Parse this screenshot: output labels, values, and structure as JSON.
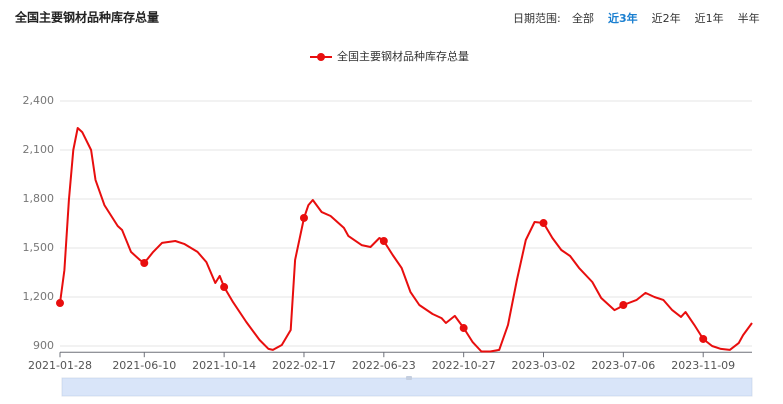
{
  "header": {
    "title": "全国主要钢材品种库存总量",
    "date_range_label": "日期范围:",
    "date_options": [
      "全部",
      "近3年",
      "近2年",
      "近1年",
      "半年"
    ],
    "active_option": 1
  },
  "chart_data": {
    "type": "line",
    "x": [
      "2021-01-28",
      "2021-02-04",
      "2021-02-11",
      "2021-02-18",
      "2021-02-25",
      "2021-03-04",
      "2021-03-18",
      "2021-03-25",
      "2021-04-08",
      "2021-04-29",
      "2021-05-06",
      "2021-05-20",
      "2021-06-03",
      "2021-06-10",
      "2021-06-24",
      "2021-07-08",
      "2021-07-29",
      "2021-08-12",
      "2021-09-02",
      "2021-09-16",
      "2021-09-30",
      "2021-10-07",
      "2021-10-14",
      "2021-10-28",
      "2021-11-18",
      "2021-12-09",
      "2021-12-23",
      "2021-12-30",
      "2022-01-13",
      "2022-01-27",
      "2022-02-03",
      "2022-02-17",
      "2022-02-24",
      "2022-03-03",
      "2022-03-17",
      "2022-03-31",
      "2022-04-21",
      "2022-04-28",
      "2022-05-19",
      "2022-06-02",
      "2022-06-16",
      "2022-06-23",
      "2022-07-07",
      "2022-07-21",
      "2022-08-04",
      "2022-08-18",
      "2022-09-08",
      "2022-09-22",
      "2022-09-29",
      "2022-10-13",
      "2022-10-27",
      "2022-11-10",
      "2022-11-24",
      "2022-12-08",
      "2022-12-22",
      "2023-01-05",
      "2023-01-19",
      "2023-02-02",
      "2023-02-16",
      "2023-03-02",
      "2023-03-16",
      "2023-03-30",
      "2023-04-13",
      "2023-04-27",
      "2023-05-18",
      "2023-06-01",
      "2023-06-22",
      "2023-06-29",
      "2023-07-06",
      "2023-07-27",
      "2023-08-10",
      "2023-08-24",
      "2023-09-07",
      "2023-09-21",
      "2023-10-05",
      "2023-10-12",
      "2023-10-26",
      "2023-11-09",
      "2023-11-23",
      "2023-12-07",
      "2023-12-21",
      "2024-01-04",
      "2024-01-11",
      "2024-01-25"
    ],
    "series": [
      {
        "name": "全国主要钢材品种库存总量",
        "color": "#e80e0e",
        "values": [
          1163,
          1365,
          1794,
          2100,
          2235,
          2210,
          2100,
          1917,
          1763,
          1635,
          1610,
          1476,
          1427,
          1408,
          1476,
          1531,
          1543,
          1525,
          1476,
          1414,
          1286,
          1329,
          1261,
          1169,
          1047,
          937,
          882,
          876,
          906,
          998,
          1427,
          1684,
          1763,
          1794,
          1720,
          1696,
          1623,
          1574,
          1518,
          1506,
          1561,
          1543,
          1457,
          1378,
          1231,
          1151,
          1096,
          1071,
          1041,
          1084,
          1010,
          925,
          866,
          866,
          876,
          1029,
          1304,
          1549,
          1659,
          1653,
          1561,
          1488,
          1451,
          1378,
          1292,
          1194,
          1120,
          1133,
          1151,
          1182,
          1225,
          1200,
          1182,
          1120,
          1078,
          1108,
          1029,
          943,
          900,
          882,
          876,
          918,
          967,
          1041
        ]
      }
    ],
    "xlim": [
      "2021-01-28",
      "2024-01-25"
    ],
    "xticks": [
      "2021-01-28",
      "2021-06-10",
      "2021-10-14",
      "2022-02-17",
      "2022-06-23",
      "2022-10-27",
      "2023-03-02",
      "2023-07-06",
      "2023-11-09"
    ],
    "ylim": [
      862,
      2500
    ],
    "yticks": [
      {
        "value": 900,
        "label": "900"
      },
      {
        "value": 1200,
        "label": "1,200"
      },
      {
        "value": 1500,
        "label": "1,500"
      },
      {
        "value": 1800,
        "label": "1,800"
      },
      {
        "value": 2100,
        "label": "2,100"
      },
      {
        "value": 2400,
        "label": "2,400"
      }
    ],
    "grid": true
  }
}
